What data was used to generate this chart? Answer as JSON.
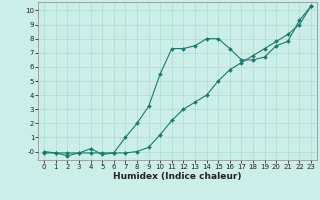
{
  "title": "",
  "xlabel": "Humidex (Indice chaleur)",
  "bg_color": "#cceee8",
  "line_color": "#1a7a6e",
  "grid_color": "#aaddcc",
  "x_wavy": [
    0,
    1,
    2,
    3,
    4,
    5,
    6,
    7,
    8,
    9,
    10,
    11,
    12,
    13,
    14,
    15,
    16,
    17,
    18,
    19,
    20,
    21,
    22,
    23
  ],
  "y_wavy": [
    0.0,
    -0.1,
    -0.3,
    -0.1,
    0.2,
    -0.2,
    -0.1,
    1.0,
    2.0,
    3.2,
    5.5,
    7.3,
    7.3,
    7.5,
    8.0,
    8.0,
    7.3,
    6.5,
    6.5,
    6.7,
    7.5,
    7.8,
    9.3,
    10.3
  ],
  "x_line": [
    0,
    1,
    2,
    3,
    4,
    5,
    6,
    7,
    8,
    9,
    10,
    11,
    12,
    13,
    14,
    15,
    16,
    17,
    18,
    19,
    20,
    21,
    22,
    23
  ],
  "y_line": [
    -0.1,
    -0.1,
    -0.1,
    -0.1,
    -0.1,
    -0.1,
    -0.1,
    -0.1,
    0.0,
    0.3,
    1.2,
    2.2,
    3.0,
    3.5,
    4.0,
    5.0,
    5.8,
    6.3,
    6.8,
    7.3,
    7.8,
    8.3,
    9.0,
    10.3
  ],
  "ylim": [
    -0.6,
    10.6
  ],
  "xlim": [
    -0.5,
    23.5
  ],
  "yticks": [
    0,
    1,
    2,
    3,
    4,
    5,
    6,
    7,
    8,
    9,
    10
  ],
  "xticks": [
    0,
    1,
    2,
    3,
    4,
    5,
    6,
    7,
    8,
    9,
    10,
    11,
    12,
    13,
    14,
    15,
    16,
    17,
    18,
    19,
    20,
    21,
    22,
    23
  ],
  "tick_fontsize": 5.0,
  "xlabel_fontsize": 6.5,
  "marker_size": 2.0,
  "line_width": 0.8
}
